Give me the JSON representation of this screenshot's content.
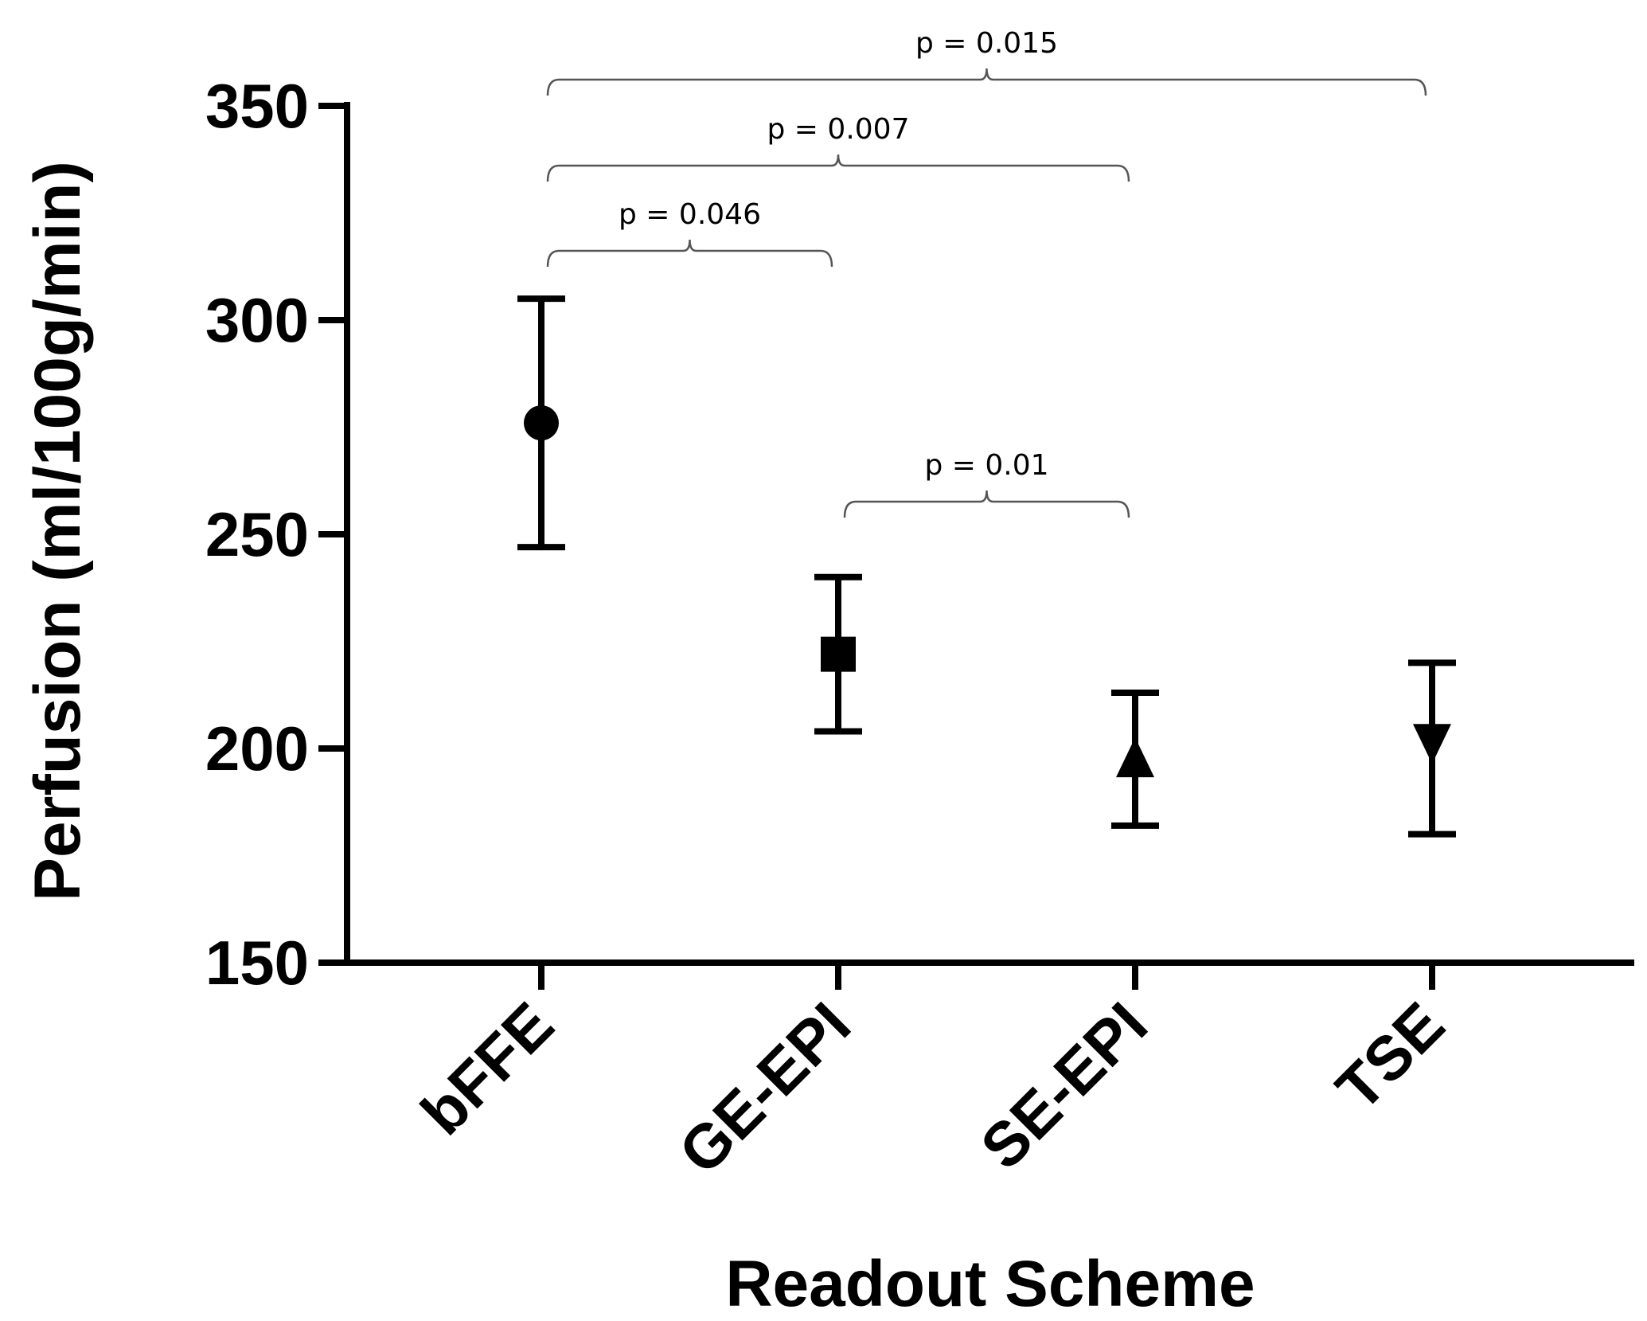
{
  "chart_data": {
    "type": "scatter",
    "title": "",
    "xlabel": "Readout Scheme",
    "ylabel": "Perfusion (ml/100g/min)",
    "categories": [
      "bFFE",
      "GE-EPI",
      "SE-EPI",
      "TSE"
    ],
    "ylim": [
      150,
      350
    ],
    "yticks": [
      150,
      200,
      250,
      300,
      350
    ],
    "grid": false,
    "points": [
      {
        "category": "bFFE",
        "mean": 276,
        "lower": 247,
        "upper": 305,
        "marker": "circle"
      },
      {
        "category": "GE-EPI",
        "mean": 222,
        "lower": 204,
        "upper": 240,
        "marker": "square"
      },
      {
        "category": "SE-EPI",
        "mean": 197,
        "lower": 182,
        "upper": 213,
        "marker": "triangle-up"
      },
      {
        "category": "TSE",
        "mean": 202,
        "lower": 180,
        "upper": 220,
        "marker": "triangle-down"
      }
    ],
    "annotations": [
      {
        "from": "bFFE",
        "to": "TSE",
        "label": "p = 0.015"
      },
      {
        "from": "bFFE",
        "to": "SE-EPI",
        "label": "p = 0.007"
      },
      {
        "from": "bFFE",
        "to": "GE-EPI",
        "label": "p = 0.046"
      },
      {
        "from": "GE-EPI",
        "to": "SE-EPI",
        "label": "p = 0.01"
      }
    ]
  }
}
